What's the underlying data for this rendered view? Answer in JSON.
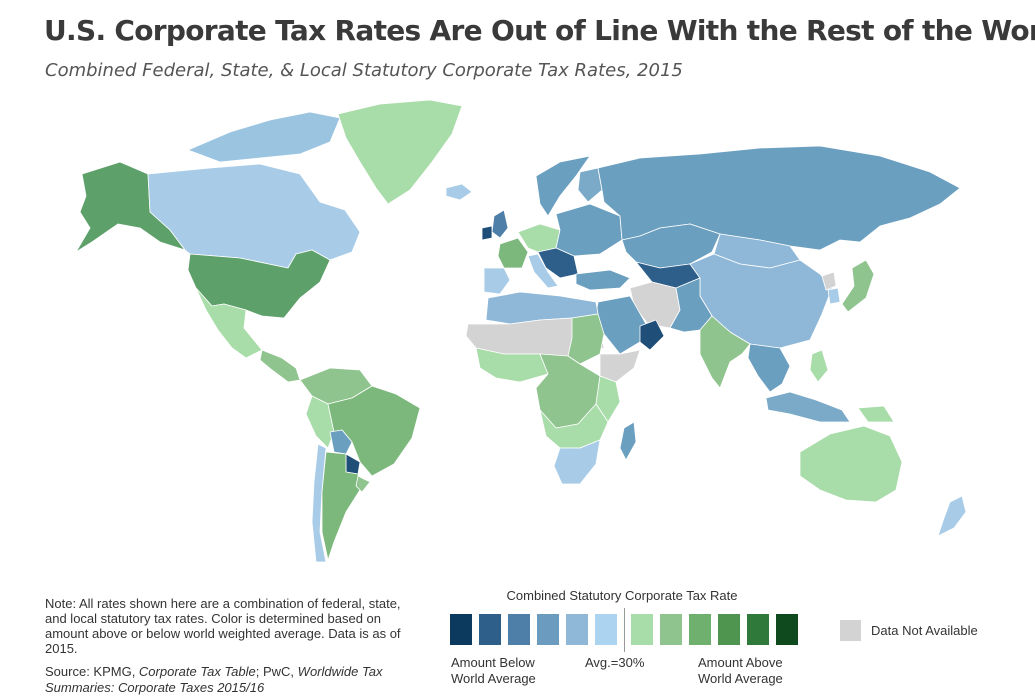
{
  "header": {
    "title": "U.S. Corporate Tax Rates Are Out of Line With the Rest of the World",
    "subtitle": "Combined Federal, State, & Local Statutory Corporate Tax Rates, 2015"
  },
  "map": {
    "regions": [
      {
        "name": "alaska",
        "color": "#5da06a"
      },
      {
        "name": "canada",
        "color": "#a8cce8"
      },
      {
        "name": "canadian-arctic",
        "color": "#9ac4e0"
      },
      {
        "name": "greenland",
        "color": "#a8dca8"
      },
      {
        "name": "iceland",
        "color": "#a8cce8"
      },
      {
        "name": "united-states",
        "color": "#5da06a"
      },
      {
        "name": "mexico",
        "color": "#a8dca8"
      },
      {
        "name": "central-america",
        "color": "#8fc48f"
      },
      {
        "name": "colombia-venezuela",
        "color": "#8fc48f"
      },
      {
        "name": "brazil",
        "color": "#7cb87c"
      },
      {
        "name": "peru",
        "color": "#a8dca8"
      },
      {
        "name": "bolivia",
        "color": "#6b9fc0"
      },
      {
        "name": "paraguay",
        "color": "#1f4e79"
      },
      {
        "name": "argentina",
        "color": "#7cb87c"
      },
      {
        "name": "chile",
        "color": "#a8cce8"
      },
      {
        "name": "uruguay",
        "color": "#8fc48f"
      },
      {
        "name": "scandinavia",
        "color": "#6b9fc0"
      },
      {
        "name": "finland",
        "color": "#7aaac8"
      },
      {
        "name": "uk",
        "color": "#4d7fa8"
      },
      {
        "name": "ireland",
        "color": "#1f4e79"
      },
      {
        "name": "france",
        "color": "#7cb87c"
      },
      {
        "name": "iberia",
        "color": "#a8cce8"
      },
      {
        "name": "central-europe",
        "color": "#a8dca8"
      },
      {
        "name": "eastern-europe",
        "color": "#6b9fc0"
      },
      {
        "name": "balkans",
        "color": "#2e5f8a"
      },
      {
        "name": "italy",
        "color": "#a8cce8"
      },
      {
        "name": "russia",
        "color": "#6b9fc0"
      },
      {
        "name": "kazakhstan",
        "color": "#6b9fc0"
      },
      {
        "name": "uzbekistan",
        "color": "#2e5f8a"
      },
      {
        "name": "mongolia",
        "color": "#8fb8d8"
      },
      {
        "name": "china",
        "color": "#8fb8d8"
      },
      {
        "name": "north-korea",
        "color": "#d3d3d3"
      },
      {
        "name": "south-korea",
        "color": "#a8cce8"
      },
      {
        "name": "japan",
        "color": "#8fc48f"
      },
      {
        "name": "turkey",
        "color": "#6b9fc0"
      },
      {
        "name": "iran",
        "color": "#d3d3d3"
      },
      {
        "name": "saudi-arabia",
        "color": "#6b9fc0"
      },
      {
        "name": "uae-oman",
        "color": "#1f4e79"
      },
      {
        "name": "afghanistan-pakistan",
        "color": "#6b9fc0"
      },
      {
        "name": "india",
        "color": "#8fc48f"
      },
      {
        "name": "southeast-asia",
        "color": "#6b9fc0"
      },
      {
        "name": "indonesia",
        "color": "#7aaac8"
      },
      {
        "name": "philippines",
        "color": "#a8dca8"
      },
      {
        "name": "papua-new-guinea",
        "color": "#a8dca8"
      },
      {
        "name": "australia",
        "color": "#a8dca8"
      },
      {
        "name": "new-zealand",
        "color": "#a8cce8"
      },
      {
        "name": "north-africa",
        "color": "#8fb8d8"
      },
      {
        "name": "sahel",
        "color": "#d3d3d3"
      },
      {
        "name": "sudan",
        "color": "#8fc48f"
      },
      {
        "name": "horn-of-africa",
        "color": "#d3d3d3"
      },
      {
        "name": "west-africa",
        "color": "#a8dca8"
      },
      {
        "name": "central-africa",
        "color": "#8fc48f"
      },
      {
        "name": "east-africa",
        "color": "#a8dca8"
      },
      {
        "name": "southern-africa",
        "color": "#a8dca8"
      },
      {
        "name": "south-africa",
        "color": "#a8cce8"
      },
      {
        "name": "madagascar",
        "color": "#6b9fc0"
      }
    ]
  },
  "note": {
    "text": "Note: All rates shown here are a combination of federal, state, and local statutory tax rates. Color is determined based on amount above or below world weighted average. Data is as of 2015."
  },
  "source": {
    "prefix": "Source:  KPMG, ",
    "ref1": "Corporate Tax Table",
    "sep": "; PwC, ",
    "ref2": "Worldwide Tax Summaries: Corporate Taxes 2015/16"
  },
  "legend": {
    "title": "Combined Statutory Corporate Tax Rate",
    "swatches": [
      "#0b3a5e",
      "#2e5f8a",
      "#4d7fa8",
      "#6b9bbf",
      "#8fb8d8",
      "#acd4f0",
      "#a8dca8",
      "#8fc48f",
      "#6fb06f",
      "#4f944f",
      "#2f7a3a",
      "#0f4a1f"
    ],
    "below_line1": "Amount Below",
    "below_line2": "World Average",
    "avg": "Avg.=30%",
    "above_line1": "Amount Above",
    "above_line2": "World Average",
    "na_label": "Data Not Available",
    "na_color": "#d3d3d3"
  }
}
